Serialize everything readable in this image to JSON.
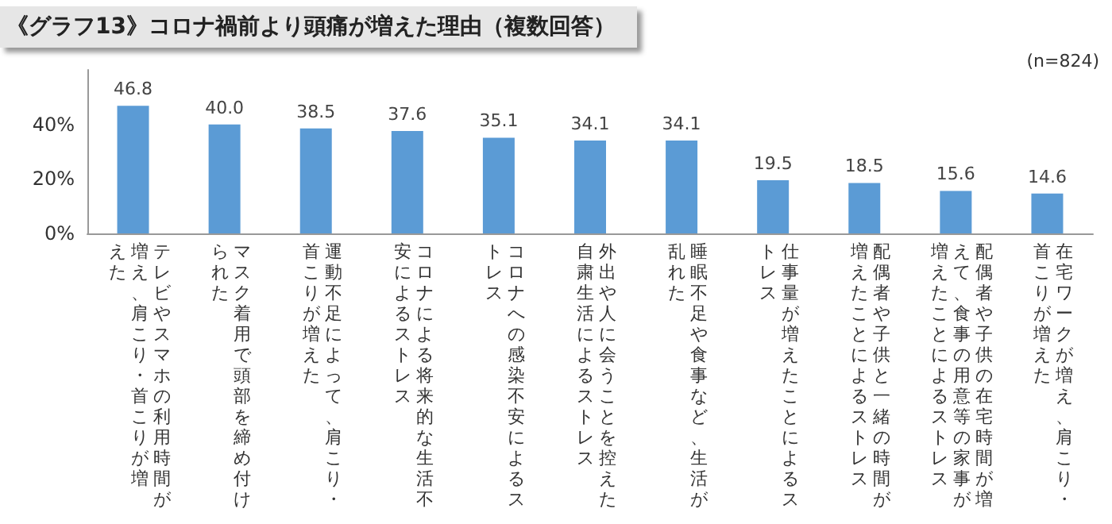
{
  "chart_data": {
    "type": "bar",
    "title": "《グラフ13》コロナ禍前より頭痛が増えた理由（複数回答）",
    "annotations": [
      "(n=824)"
    ],
    "categories": [
      "テレビやスマホの利用時間が増え、肩こり・首こりが増えた",
      "マスク着用で頭部を締め付けられた",
      "運動不足によって、肩こり・首こりが増えた",
      "コロナによる将来的な生活不安によるストレス",
      "コロナへの感染不安によるストレス",
      "外出や人に会うことを控えた自粛生活によるストレス",
      "睡眠不足や食事など、生活が乱れた",
      "仕事量が増えたことによるストレス",
      "配偶者や子供と一緒の時間が増えたことによるストレス",
      "配偶者や子供の在宅時間が増えて、食事の用意等の家事が増えたことによるストレス",
      "在宅ワークが増え、肩こり・首こりが増えた"
    ],
    "values": [
      46.8,
      40.0,
      38.5,
      37.6,
      35.1,
      34.1,
      34.1,
      19.5,
      18.5,
      15.6,
      14.6
    ],
    "value_labels": [
      "46.8",
      "40.0",
      "38.5",
      "37.6",
      "35.1",
      "34.1",
      "34.1",
      "19.5",
      "18.5",
      "15.6",
      "14.6"
    ],
    "color": "#5b9bd5",
    "ylim": [
      0,
      60
    ],
    "yticks": [
      {
        "value": 0,
        "label": "0%"
      },
      {
        "value": 20,
        "label": "20%"
      },
      {
        "value": 40,
        "label": "40%"
      }
    ],
    "grid": false
  }
}
